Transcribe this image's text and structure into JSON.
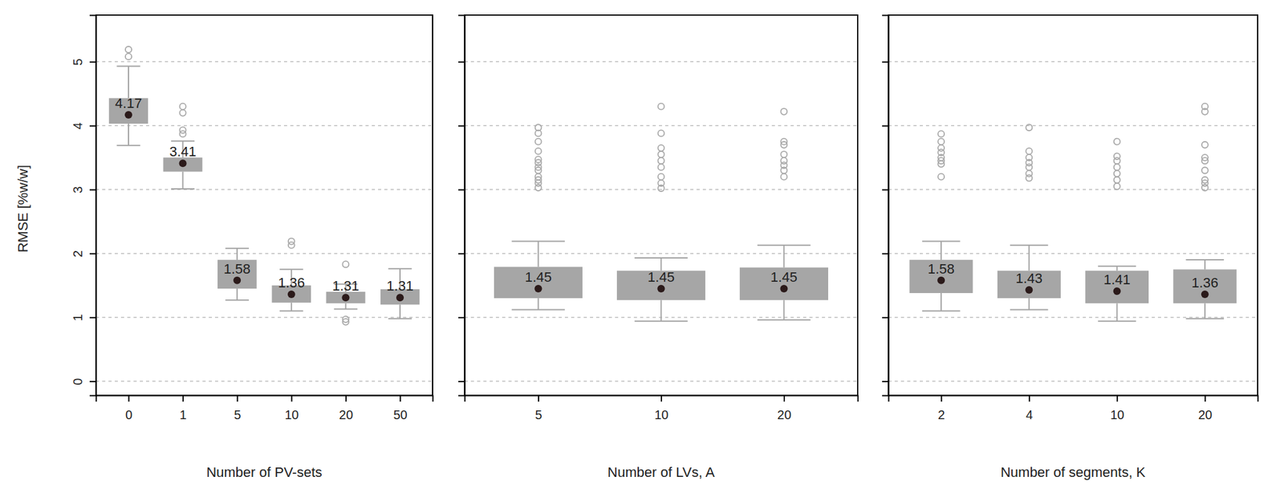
{
  "chart_data": [
    {
      "type": "box",
      "x_label": "Number of PV-sets",
      "y_label": "RMSE [%w/w]",
      "categories": [
        "0",
        "1",
        "5",
        "10",
        "20",
        "50"
      ],
      "whisker_low": [
        3.69,
        3.01,
        1.27,
        1.1,
        1.13,
        0.98
      ],
      "q1": [
        4.03,
        3.28,
        1.45,
        1.23,
        1.22,
        1.2
      ],
      "median": [
        4.17,
        3.41,
        1.58,
        1.36,
        1.31,
        1.31
      ],
      "q3": [
        4.43,
        3.5,
        1.9,
        1.5,
        1.4,
        1.44
      ],
      "whisker_high": [
        4.93,
        3.76,
        2.08,
        1.75,
        1.52,
        1.76
      ],
      "outliers": [
        [
          5.08,
          5.19
        ],
        [
          3.87,
          3.93,
          4.2,
          4.3
        ],
        [],
        [
          2.13,
          2.19
        ],
        [
          0.93,
          0.97,
          1.83
        ],
        []
      ],
      "ylim": [
        -0.22,
        5.73
      ],
      "yticks": [
        0,
        1,
        2,
        3,
        4,
        5
      ],
      "grid": true,
      "data_labels": true,
      "color": "#a6a6a6"
    },
    {
      "type": "box",
      "x_label": "Number of LVs, A",
      "categories": [
        "5",
        "10",
        "20"
      ],
      "whisker_low": [
        1.12,
        0.94,
        0.96
      ],
      "q1": [
        1.3,
        1.27,
        1.27
      ],
      "median": [
        1.45,
        1.45,
        1.45
      ],
      "q3": [
        1.79,
        1.73,
        1.78
      ],
      "whisker_high": [
        2.19,
        1.93,
        2.13
      ],
      "outliers": [
        [
          3.03,
          3.1,
          3.15,
          3.2,
          3.3,
          3.35,
          3.42,
          3.47,
          3.6,
          3.75,
          3.88,
          3.97
        ],
        [
          3.02,
          3.1,
          3.2,
          3.35,
          3.45,
          3.55,
          3.65,
          3.88,
          4.3
        ],
        [
          3.2,
          3.3,
          3.38,
          3.45,
          3.55,
          3.7,
          3.75,
          4.22
        ]
      ],
      "ylim": [
        -0.22,
        5.73
      ],
      "yticks": [
        0,
        1,
        2,
        3,
        4,
        5
      ],
      "grid": true,
      "data_labels": true,
      "tick_labels": "x",
      "color": "#a6a6a6"
    },
    {
      "type": "box",
      "x_label": "Number of segments, K",
      "categories": [
        "2",
        "4",
        "10",
        "20"
      ],
      "whisker_low": [
        1.1,
        1.12,
        0.94,
        0.98
      ],
      "q1": [
        1.38,
        1.3,
        1.22,
        1.22
      ],
      "median": [
        1.58,
        1.43,
        1.41,
        1.36
      ],
      "q3": [
        1.9,
        1.73,
        1.73,
        1.75
      ],
      "whisker_high": [
        2.19,
        2.13,
        1.8,
        1.9
      ],
      "outliers": [
        [
          3.2,
          3.4,
          3.45,
          3.5,
          3.58,
          3.65,
          3.75,
          3.87
        ],
        [
          3.18,
          3.25,
          3.35,
          3.42,
          3.5,
          3.6,
          3.97
        ],
        [
          3.05,
          3.15,
          3.25,
          3.35,
          3.45,
          3.52,
          3.75
        ],
        [
          3.03,
          3.1,
          3.15,
          3.3,
          3.45,
          3.5,
          3.7,
          4.22,
          4.3
        ]
      ],
      "ylim": [
        -0.22,
        5.73
      ],
      "yticks": [
        0,
        1,
        2,
        3,
        4,
        5
      ],
      "grid": true,
      "data_labels": true,
      "tick_labels": "x",
      "color": "#a6a6a6"
    }
  ]
}
